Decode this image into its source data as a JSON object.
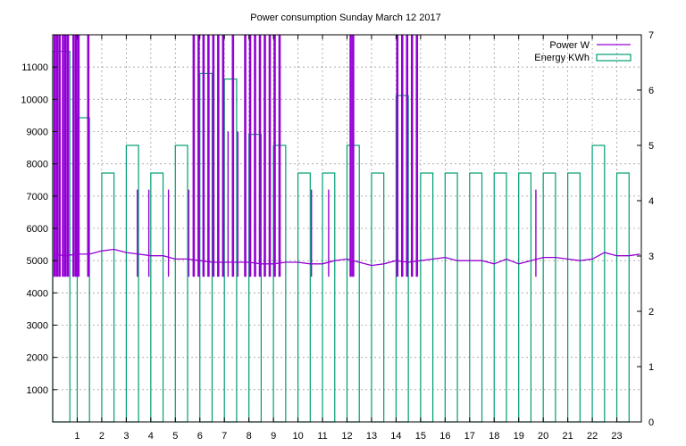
{
  "chart_data": {
    "type": "line",
    "title": "Power consumption Sunday March 12 2017",
    "xlim": [
      0,
      24
    ],
    "x_ticks": [
      1,
      2,
      3,
      4,
      5,
      6,
      7,
      8,
      9,
      10,
      11,
      12,
      13,
      14,
      15,
      16,
      17,
      18,
      19,
      20,
      21,
      22,
      23
    ],
    "ylim": [
      0,
      12000
    ],
    "y_ticks": [
      1000,
      2000,
      3000,
      4000,
      5000,
      6000,
      7000,
      8000,
      9000,
      10000,
      11000
    ],
    "y2lim": [
      0,
      7
    ],
    "y2_ticks": [
      0,
      1,
      2,
      3,
      4,
      5,
      6,
      7
    ],
    "grid": true,
    "legend_position": "top-right",
    "colors": {
      "power": "#9400d3",
      "energy": "#009e73"
    },
    "series": [
      {
        "name": "Power W",
        "axis": "y",
        "style": "line",
        "baseline": [
          [
            0.05,
            5200
          ],
          [
            0.5,
            5150
          ],
          [
            1.0,
            5200
          ],
          [
            1.5,
            5200
          ],
          [
            2.0,
            5300
          ],
          [
            2.5,
            5350
          ],
          [
            3.0,
            5250
          ],
          [
            3.5,
            5200
          ],
          [
            4.0,
            5150
          ],
          [
            4.5,
            5150
          ],
          [
            5.0,
            5050
          ],
          [
            5.5,
            5050
          ],
          [
            6.0,
            5000
          ],
          [
            6.5,
            4950
          ],
          [
            7.0,
            4950
          ],
          [
            7.5,
            4950
          ],
          [
            8.0,
            4950
          ],
          [
            8.5,
            4900
          ],
          [
            9.0,
            4900
          ],
          [
            9.5,
            4950
          ],
          [
            10.0,
            4950
          ],
          [
            10.5,
            4900
          ],
          [
            11.0,
            4900
          ],
          [
            11.5,
            5000
          ],
          [
            12.0,
            5050
          ],
          [
            12.5,
            4950
          ],
          [
            13.0,
            4850
          ],
          [
            13.5,
            4900
          ],
          [
            14.0,
            5000
          ],
          [
            14.5,
            4950
          ],
          [
            15.0,
            5000
          ],
          [
            15.5,
            5050
          ],
          [
            16.0,
            5100
          ],
          [
            16.5,
            5000
          ],
          [
            17.0,
            5000
          ],
          [
            17.5,
            5000
          ],
          [
            18.0,
            4900
          ],
          [
            18.5,
            5050
          ],
          [
            19.0,
            4900
          ],
          [
            19.5,
            5000
          ],
          [
            20.0,
            5100
          ],
          [
            20.5,
            5100
          ],
          [
            21.0,
            5050
          ],
          [
            21.5,
            5000
          ],
          [
            22.0,
            5050
          ],
          [
            22.5,
            5250
          ],
          [
            23.0,
            5150
          ],
          [
            23.5,
            5150
          ],
          [
            23.95,
            5200
          ]
        ],
        "spikes": [
          {
            "x": 0.08,
            "y": 12000
          },
          {
            "x": 0.18,
            "y": 12000
          },
          {
            "x": 0.28,
            "y": 12000
          },
          {
            "x": 0.42,
            "y": 12000
          },
          {
            "x": 0.52,
            "y": 12000
          },
          {
            "x": 0.62,
            "y": 12000
          },
          {
            "x": 0.85,
            "y": 12000
          },
          {
            "x": 0.95,
            "y": 12000
          },
          {
            "x": 1.05,
            "y": 12000
          },
          {
            "x": 1.45,
            "y": 12000
          },
          {
            "x": 3.45,
            "y": 7200
          },
          {
            "x": 3.92,
            "y": 7200
          },
          {
            "x": 4.72,
            "y": 7200
          },
          {
            "x": 5.55,
            "y": 7200
          },
          {
            "x": 5.75,
            "y": 12000
          },
          {
            "x": 5.95,
            "y": 12000
          },
          {
            "x": 6.15,
            "y": 12000
          },
          {
            "x": 6.35,
            "y": 12000
          },
          {
            "x": 6.55,
            "y": 12000
          },
          {
            "x": 6.75,
            "y": 12000
          },
          {
            "x": 6.95,
            "y": 12000
          },
          {
            "x": 7.15,
            "y": 9000
          },
          {
            "x": 7.35,
            "y": 12000
          },
          {
            "x": 7.55,
            "y": 9000
          },
          {
            "x": 7.85,
            "y": 12000
          },
          {
            "x": 8.05,
            "y": 12000
          },
          {
            "x": 8.25,
            "y": 12000
          },
          {
            "x": 8.45,
            "y": 12000
          },
          {
            "x": 8.65,
            "y": 12000
          },
          {
            "x": 8.85,
            "y": 12000
          },
          {
            "x": 9.05,
            "y": 12000
          },
          {
            "x": 9.25,
            "y": 12000
          },
          {
            "x": 10.55,
            "y": 7200
          },
          {
            "x": 11.25,
            "y": 7200
          },
          {
            "x": 12.15,
            "y": 12000
          },
          {
            "x": 12.25,
            "y": 12000
          },
          {
            "x": 14.05,
            "y": 12000
          },
          {
            "x": 14.25,
            "y": 12000
          },
          {
            "x": 14.45,
            "y": 12000
          },
          {
            "x": 14.65,
            "y": 12000
          },
          {
            "x": 14.85,
            "y": 12000
          },
          {
            "x": 19.7,
            "y": 7200
          }
        ]
      },
      {
        "name": "Energy KWh",
        "axis": "y2",
        "style": "bars",
        "bars": [
          {
            "x_start": 0.0,
            "x_end": 0.7,
            "value": 6.7
          },
          {
            "x_start": 1.0,
            "x_end": 1.5,
            "value": 5.5
          },
          {
            "x_start": 2.0,
            "x_end": 2.5,
            "value": 4.5
          },
          {
            "x_start": 3.0,
            "x_end": 3.5,
            "value": 5.0
          },
          {
            "x_start": 4.0,
            "x_end": 4.5,
            "value": 4.5
          },
          {
            "x_start": 5.0,
            "x_end": 5.5,
            "value": 5.0
          },
          {
            "x_start": 6.0,
            "x_end": 6.5,
            "value": 6.3
          },
          {
            "x_start": 7.0,
            "x_end": 7.5,
            "value": 6.2
          },
          {
            "x_start": 8.0,
            "x_end": 8.5,
            "value": 5.2
          },
          {
            "x_start": 9.0,
            "x_end": 9.5,
            "value": 5.0
          },
          {
            "x_start": 10.0,
            "x_end": 10.5,
            "value": 4.5
          },
          {
            "x_start": 11.0,
            "x_end": 11.5,
            "value": 4.5
          },
          {
            "x_start": 12.0,
            "x_end": 12.5,
            "value": 5.0
          },
          {
            "x_start": 13.0,
            "x_end": 13.5,
            "value": 4.5
          },
          {
            "x_start": 14.0,
            "x_end": 14.5,
            "value": 5.9
          },
          {
            "x_start": 15.0,
            "x_end": 15.5,
            "value": 4.5
          },
          {
            "x_start": 16.0,
            "x_end": 16.5,
            "value": 4.5
          },
          {
            "x_start": 17.0,
            "x_end": 17.5,
            "value": 4.5
          },
          {
            "x_start": 18.0,
            "x_end": 18.5,
            "value": 4.5
          },
          {
            "x_start": 19.0,
            "x_end": 19.5,
            "value": 4.5
          },
          {
            "x_start": 20.0,
            "x_end": 20.5,
            "value": 4.5
          },
          {
            "x_start": 21.0,
            "x_end": 21.5,
            "value": 4.5
          },
          {
            "x_start": 22.0,
            "x_end": 22.5,
            "value": 5.0
          },
          {
            "x_start": 23.0,
            "x_end": 23.5,
            "value": 4.5
          }
        ]
      }
    ]
  }
}
